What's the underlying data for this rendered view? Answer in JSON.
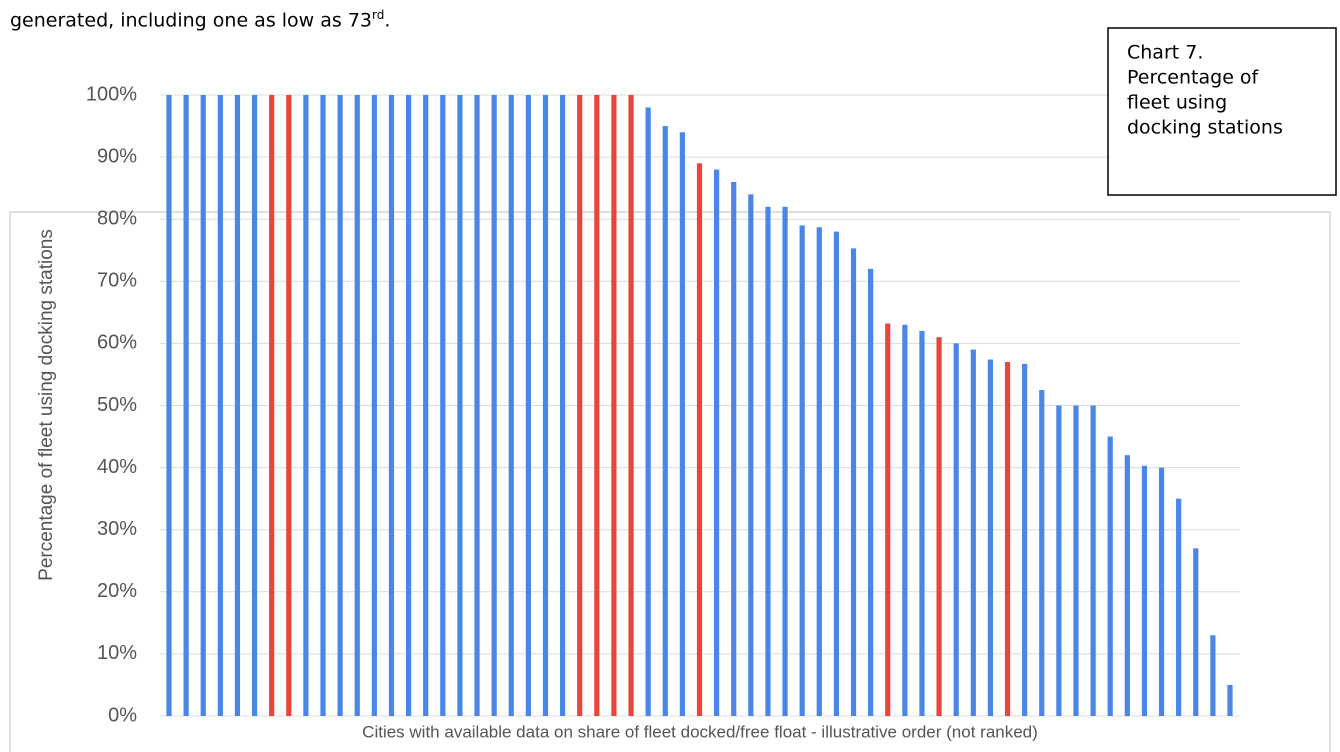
{
  "intro_text": [
    "generated, including one as low as 73",
    "rd",
    "."
  ],
  "chart_data": {
    "type": "bar",
    "annotation": [
      "Chart 7.",
      "Percentage of",
      "fleet using",
      "docking stations"
    ],
    "x_label": "Cities with available data on share of fleet docked/free float - illustrative order (not ranked)",
    "y_label": "Percentage of fleet using docking stations",
    "values": [
      100,
      100,
      100,
      100,
      100,
      100,
      100,
      100,
      100,
      100,
      100,
      100,
      100,
      100,
      100,
      100,
      100,
      100,
      100,
      100,
      100,
      100,
      100,
      100,
      100,
      100,
      100,
      100,
      98,
      95,
      94,
      89,
      88,
      86,
      84,
      82,
      82,
      79,
      78.7,
      78,
      75.3,
      72,
      63.2,
      63,
      62,
      61,
      60,
      59,
      57.4,
      57,
      56.7,
      52.5,
      50,
      50,
      50,
      45,
      42,
      40.3,
      40,
      35,
      27,
      13,
      5
    ],
    "colors": [
      "#4a86e8",
      "#4a86e8",
      "#4a86e8",
      "#4a86e8",
      "#4a86e8",
      "#4a86e8",
      "#e8453c",
      "#e8453c",
      "#4a86e8",
      "#4a86e8",
      "#4a86e8",
      "#4a86e8",
      "#4a86e8",
      "#4a86e8",
      "#4a86e8",
      "#4a86e8",
      "#4a86e8",
      "#4a86e8",
      "#4a86e8",
      "#4a86e8",
      "#4a86e8",
      "#4a86e8",
      "#4a86e8",
      "#4a86e8",
      "#e8453c",
      "#e8453c",
      "#e8453c",
      "#e8453c",
      "#4a86e8",
      "#4a86e8",
      "#4a86e8",
      "#e8453c",
      "#4a86e8",
      "#4a86e8",
      "#4a86e8",
      "#4a86e8",
      "#4a86e8",
      "#4a86e8",
      "#4a86e8",
      "#4a86e8",
      "#4a86e8",
      "#4a86e8",
      "#e8453c",
      "#4a86e8",
      "#4a86e8",
      "#e8453c",
      "#4a86e8",
      "#4a86e8",
      "#4a86e8",
      "#e8453c",
      "#4a86e8",
      "#4a86e8",
      "#4a86e8",
      "#4a86e8",
      "#4a86e8",
      "#4a86e8",
      "#4a86e8",
      "#4a86e8",
      "#4a86e8",
      "#4a86e8",
      "#4a86e8",
      "#4a86e8",
      "#4a86e8"
    ],
    "ylim": [
      0,
      100
    ],
    "yticks": [
      {
        "value": 0,
        "label": "0%"
      },
      {
        "value": 10,
        "label": "10%"
      },
      {
        "value": 20,
        "label": "20%"
      },
      {
        "value": 30,
        "label": "30%"
      },
      {
        "value": 40,
        "label": "40%"
      },
      {
        "value": 50,
        "label": "50%"
      },
      {
        "value": 60,
        "label": "60%"
      },
      {
        "value": 70,
        "label": "70%"
      },
      {
        "value": 80,
        "label": "80%"
      },
      {
        "value": 90,
        "label": "90%"
      },
      {
        "value": 100,
        "label": "100%"
      }
    ],
    "grid": true
  }
}
